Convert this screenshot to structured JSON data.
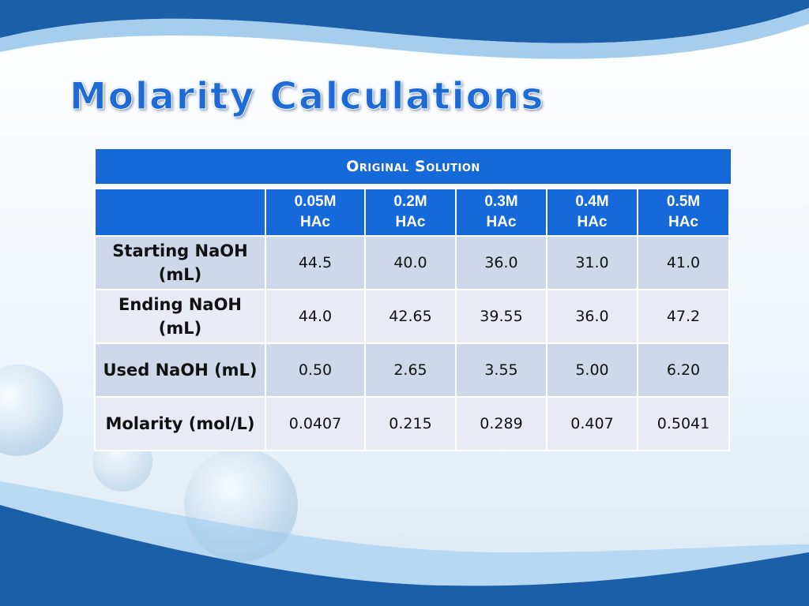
{
  "slide": {
    "title": "Molarity Calculations"
  },
  "table": {
    "group_header": "Original Solution",
    "column_headers": [
      "",
      "0.05M\nHAc",
      "0.2M\nHAc",
      "0.3M\nHAc",
      "0.4M\nHAc",
      "0.5M\nHAc"
    ],
    "rows": [
      {
        "label": "Starting NaOH (mL)",
        "values": [
          "44.5",
          "40.0",
          "36.0",
          "31.0",
          "41.0"
        ]
      },
      {
        "label": "Ending NaOH (mL)",
        "values": [
          "44.0",
          "42.65",
          "39.55",
          "36.0",
          "47.2"
        ]
      },
      {
        "label": "Used NaOH (mL)",
        "values": [
          "0.50",
          "2.65",
          "3.55",
          "5.00",
          "6.20"
        ]
      },
      {
        "label": "Molarity (mol/L)",
        "values": [
          "0.0407",
          "0.215",
          "0.289",
          "0.407",
          "0.5041"
        ]
      }
    ]
  },
  "colors": {
    "accent_blue": "#1569d8",
    "wave_dark_blue": "#1a5fa8",
    "row_band_dark": "#cfd7ea",
    "row_band_light": "#e8ebf4"
  }
}
